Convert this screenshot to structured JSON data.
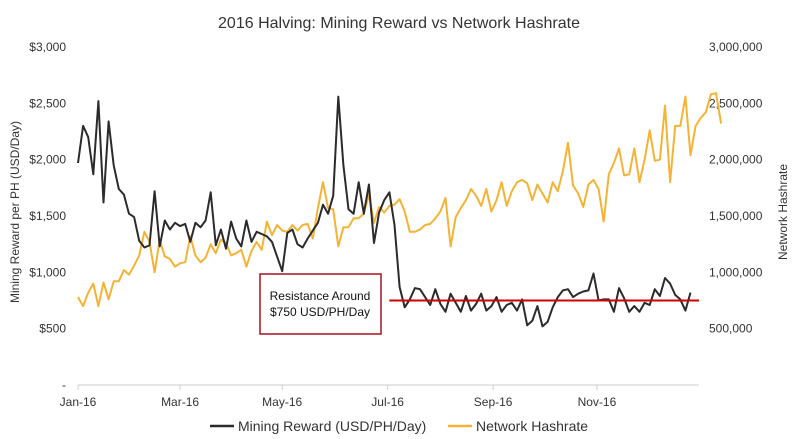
{
  "chart_data": {
    "type": "line",
    "title": "2016 Halving: Mining Reward vs Network Hashrate",
    "xlabel": "",
    "ylabel_left": "Mining Reward per PH (USD/Day)",
    "ylabel_right": "Network Hashrate",
    "x_ticks": [
      "Jan-16",
      "Mar-16",
      "May-16",
      "Jul-16",
      "Sep-16",
      "Nov-16"
    ],
    "y_left_ticks": [
      "-",
      "$500",
      "$1,000",
      "$1,500",
      "$2,000",
      "$2,500",
      "$3,000"
    ],
    "y_right_ticks": [
      "500,000",
      "1,000,000",
      "1,500,000",
      "2,000,000",
      "2,500,000",
      "3,000,000"
    ],
    "ylim_left": [
      0,
      3000
    ],
    "ylim_right": [
      0,
      3000000
    ],
    "x_tick_days": [
      0,
      60,
      120,
      182,
      244,
      305
    ],
    "days_range": [
      0,
      365
    ],
    "series": [
      {
        "name": "Mining Reward (USD/PH/Day)",
        "axis": "left",
        "color": "#2b2b2b",
        "points": [
          [
            0,
            1970
          ],
          [
            3,
            2300
          ],
          [
            6,
            2200
          ],
          [
            9,
            1870
          ],
          [
            12,
            2520
          ],
          [
            15,
            1620
          ],
          [
            18,
            2340
          ],
          [
            21,
            1950
          ],
          [
            24,
            1740
          ],
          [
            27,
            1690
          ],
          [
            30,
            1520
          ],
          [
            33,
            1490
          ],
          [
            36,
            1280
          ],
          [
            39,
            1220
          ],
          [
            42,
            1240
          ],
          [
            45,
            1720
          ],
          [
            48,
            1230
          ],
          [
            51,
            1460
          ],
          [
            54,
            1380
          ],
          [
            57,
            1440
          ],
          [
            60,
            1410
          ],
          [
            63,
            1430
          ],
          [
            66,
            1270
          ],
          [
            69,
            1440
          ],
          [
            72,
            1400
          ],
          [
            75,
            1460
          ],
          [
            78,
            1710
          ],
          [
            81,
            1240
          ],
          [
            84,
            1380
          ],
          [
            87,
            1210
          ],
          [
            90,
            1450
          ],
          [
            93,
            1300
          ],
          [
            96,
            1230
          ],
          [
            99,
            1460
          ],
          [
            102,
            1270
          ],
          [
            105,
            1360
          ],
          [
            108,
            1340
          ],
          [
            111,
            1320
          ],
          [
            114,
            1270
          ],
          [
            117,
            1140
          ],
          [
            120,
            1010
          ],
          [
            123,
            1350
          ],
          [
            126,
            1380
          ],
          [
            129,
            1250
          ],
          [
            132,
            1220
          ],
          [
            135,
            1300
          ],
          [
            138,
            1370
          ],
          [
            141,
            1440
          ],
          [
            144,
            1600
          ],
          [
            147,
            1520
          ],
          [
            150,
            1680
          ],
          [
            153,
            2560
          ],
          [
            156,
            1950
          ],
          [
            159,
            1560
          ],
          [
            162,
            1520
          ],
          [
            165,
            1800
          ],
          [
            168,
            1520
          ],
          [
            171,
            1780
          ],
          [
            174,
            1260
          ],
          [
            177,
            1530
          ],
          [
            180,
            1640
          ],
          [
            183,
            1710
          ],
          [
            186,
            1420
          ],
          [
            189,
            870
          ],
          [
            192,
            690
          ],
          [
            195,
            760
          ],
          [
            198,
            860
          ],
          [
            201,
            850
          ],
          [
            204,
            780
          ],
          [
            207,
            710
          ],
          [
            210,
            850
          ],
          [
            213,
            720
          ],
          [
            216,
            650
          ],
          [
            219,
            810
          ],
          [
            222,
            730
          ],
          [
            225,
            650
          ],
          [
            228,
            790
          ],
          [
            231,
            660
          ],
          [
            234,
            720
          ],
          [
            237,
            810
          ],
          [
            240,
            660
          ],
          [
            243,
            700
          ],
          [
            246,
            780
          ],
          [
            249,
            650
          ],
          [
            252,
            710
          ],
          [
            255,
            730
          ],
          [
            258,
            660
          ],
          [
            261,
            760
          ],
          [
            264,
            530
          ],
          [
            267,
            570
          ],
          [
            270,
            700
          ],
          [
            273,
            520
          ],
          [
            276,
            560
          ],
          [
            279,
            690
          ],
          [
            282,
            780
          ],
          [
            285,
            840
          ],
          [
            288,
            850
          ],
          [
            291,
            780
          ],
          [
            294,
            810
          ],
          [
            297,
            830
          ],
          [
            300,
            840
          ],
          [
            303,
            990
          ],
          [
            306,
            750
          ],
          [
            309,
            760
          ],
          [
            312,
            760
          ],
          [
            315,
            650
          ],
          [
            318,
            860
          ],
          [
            321,
            770
          ],
          [
            324,
            650
          ],
          [
            327,
            700
          ],
          [
            330,
            650
          ],
          [
            333,
            730
          ],
          [
            336,
            710
          ],
          [
            339,
            850
          ],
          [
            342,
            790
          ],
          [
            345,
            950
          ],
          [
            348,
            900
          ],
          [
            351,
            800
          ],
          [
            354,
            760
          ],
          [
            357,
            660
          ],
          [
            360,
            820
          ]
        ]
      },
      {
        "name": "Network Hashrate",
        "axis": "right",
        "color": "#f5b335",
        "points": [
          [
            0,
            780000
          ],
          [
            3,
            700000
          ],
          [
            6,
            820000
          ],
          [
            9,
            900000
          ],
          [
            12,
            700000
          ],
          [
            15,
            910000
          ],
          [
            18,
            760000
          ],
          [
            21,
            920000
          ],
          [
            24,
            920000
          ],
          [
            27,
            1020000
          ],
          [
            30,
            980000
          ],
          [
            33,
            1060000
          ],
          [
            36,
            1150000
          ],
          [
            39,
            1360000
          ],
          [
            42,
            1270000
          ],
          [
            45,
            1000000
          ],
          [
            48,
            1290000
          ],
          [
            51,
            1140000
          ],
          [
            54,
            1120000
          ],
          [
            57,
            1050000
          ],
          [
            60,
            1080000
          ],
          [
            63,
            1090000
          ],
          [
            66,
            1320000
          ],
          [
            69,
            1150000
          ],
          [
            72,
            1090000
          ],
          [
            75,
            1130000
          ],
          [
            78,
            1250000
          ],
          [
            81,
            1170000
          ],
          [
            84,
            1290000
          ],
          [
            87,
            1260000
          ],
          [
            90,
            1150000
          ],
          [
            93,
            1170000
          ],
          [
            96,
            1200000
          ],
          [
            99,
            1050000
          ],
          [
            102,
            1190000
          ],
          [
            105,
            1270000
          ],
          [
            108,
            1200000
          ],
          [
            111,
            1450000
          ],
          [
            114,
            1330000
          ],
          [
            117,
            1420000
          ],
          [
            120,
            1370000
          ],
          [
            123,
            1360000
          ],
          [
            126,
            1420000
          ],
          [
            129,
            1370000
          ],
          [
            132,
            1420000
          ],
          [
            135,
            1430000
          ],
          [
            138,
            1300000
          ],
          [
            141,
            1570000
          ],
          [
            144,
            1800000
          ],
          [
            147,
            1570000
          ],
          [
            150,
            1560000
          ],
          [
            153,
            1230000
          ],
          [
            156,
            1400000
          ],
          [
            159,
            1400000
          ],
          [
            162,
            1480000
          ],
          [
            165,
            1480000
          ],
          [
            168,
            1520000
          ],
          [
            171,
            1690000
          ],
          [
            174,
            1440000
          ],
          [
            177,
            1580000
          ],
          [
            180,
            1530000
          ],
          [
            183,
            1590000
          ],
          [
            186,
            1600000
          ],
          [
            189,
            1650000
          ],
          [
            192,
            1540000
          ],
          [
            195,
            1360000
          ],
          [
            198,
            1360000
          ],
          [
            201,
            1380000
          ],
          [
            204,
            1420000
          ],
          [
            207,
            1430000
          ],
          [
            210,
            1480000
          ],
          [
            213,
            1540000
          ],
          [
            216,
            1660000
          ],
          [
            219,
            1230000
          ],
          [
            222,
            1490000
          ],
          [
            225,
            1570000
          ],
          [
            228,
            1640000
          ],
          [
            231,
            1740000
          ],
          [
            234,
            1680000
          ],
          [
            237,
            1590000
          ],
          [
            240,
            1740000
          ],
          [
            243,
            1540000
          ],
          [
            246,
            1640000
          ],
          [
            249,
            1800000
          ],
          [
            252,
            1590000
          ],
          [
            255,
            1720000
          ],
          [
            258,
            1800000
          ],
          [
            261,
            1820000
          ],
          [
            264,
            1790000
          ],
          [
            267,
            1640000
          ],
          [
            270,
            1780000
          ],
          [
            273,
            1700000
          ],
          [
            276,
            1620000
          ],
          [
            279,
            1800000
          ],
          [
            282,
            1720000
          ],
          [
            285,
            1900000
          ],
          [
            288,
            2150000
          ],
          [
            291,
            1770000
          ],
          [
            294,
            1700000
          ],
          [
            297,
            1580000
          ],
          [
            300,
            1780000
          ],
          [
            303,
            1820000
          ],
          [
            306,
            1740000
          ],
          [
            309,
            1450000
          ],
          [
            312,
            1870000
          ],
          [
            315,
            1970000
          ],
          [
            318,
            2100000
          ],
          [
            321,
            1860000
          ],
          [
            324,
            1870000
          ],
          [
            327,
            2100000
          ],
          [
            330,
            1800000
          ],
          [
            333,
            2000000
          ],
          [
            336,
            2260000
          ],
          [
            339,
            1990000
          ],
          [
            342,
            2000000
          ],
          [
            345,
            2480000
          ],
          [
            348,
            1800000
          ],
          [
            351,
            2300000
          ],
          [
            354,
            2300000
          ],
          [
            357,
            2560000
          ],
          [
            360,
            2040000
          ],
          [
            363,
            2300000
          ],
          [
            366,
            2370000
          ],
          [
            369,
            2420000
          ],
          [
            372,
            2580000
          ],
          [
            375,
            2590000
          ],
          [
            378,
            2320000
          ]
        ]
      }
    ],
    "annotation": {
      "text_line1": "Resistance Around",
      "text_line2": "$750 USD/PH/Day",
      "level": 750,
      "start_day": 183,
      "line_color": "#cc0000",
      "box_border_color": "#a8141e"
    },
    "legend": {
      "position": "bottom",
      "items": [
        "Mining Reward (USD/PH/Day)",
        "Network Hashrate"
      ]
    }
  }
}
